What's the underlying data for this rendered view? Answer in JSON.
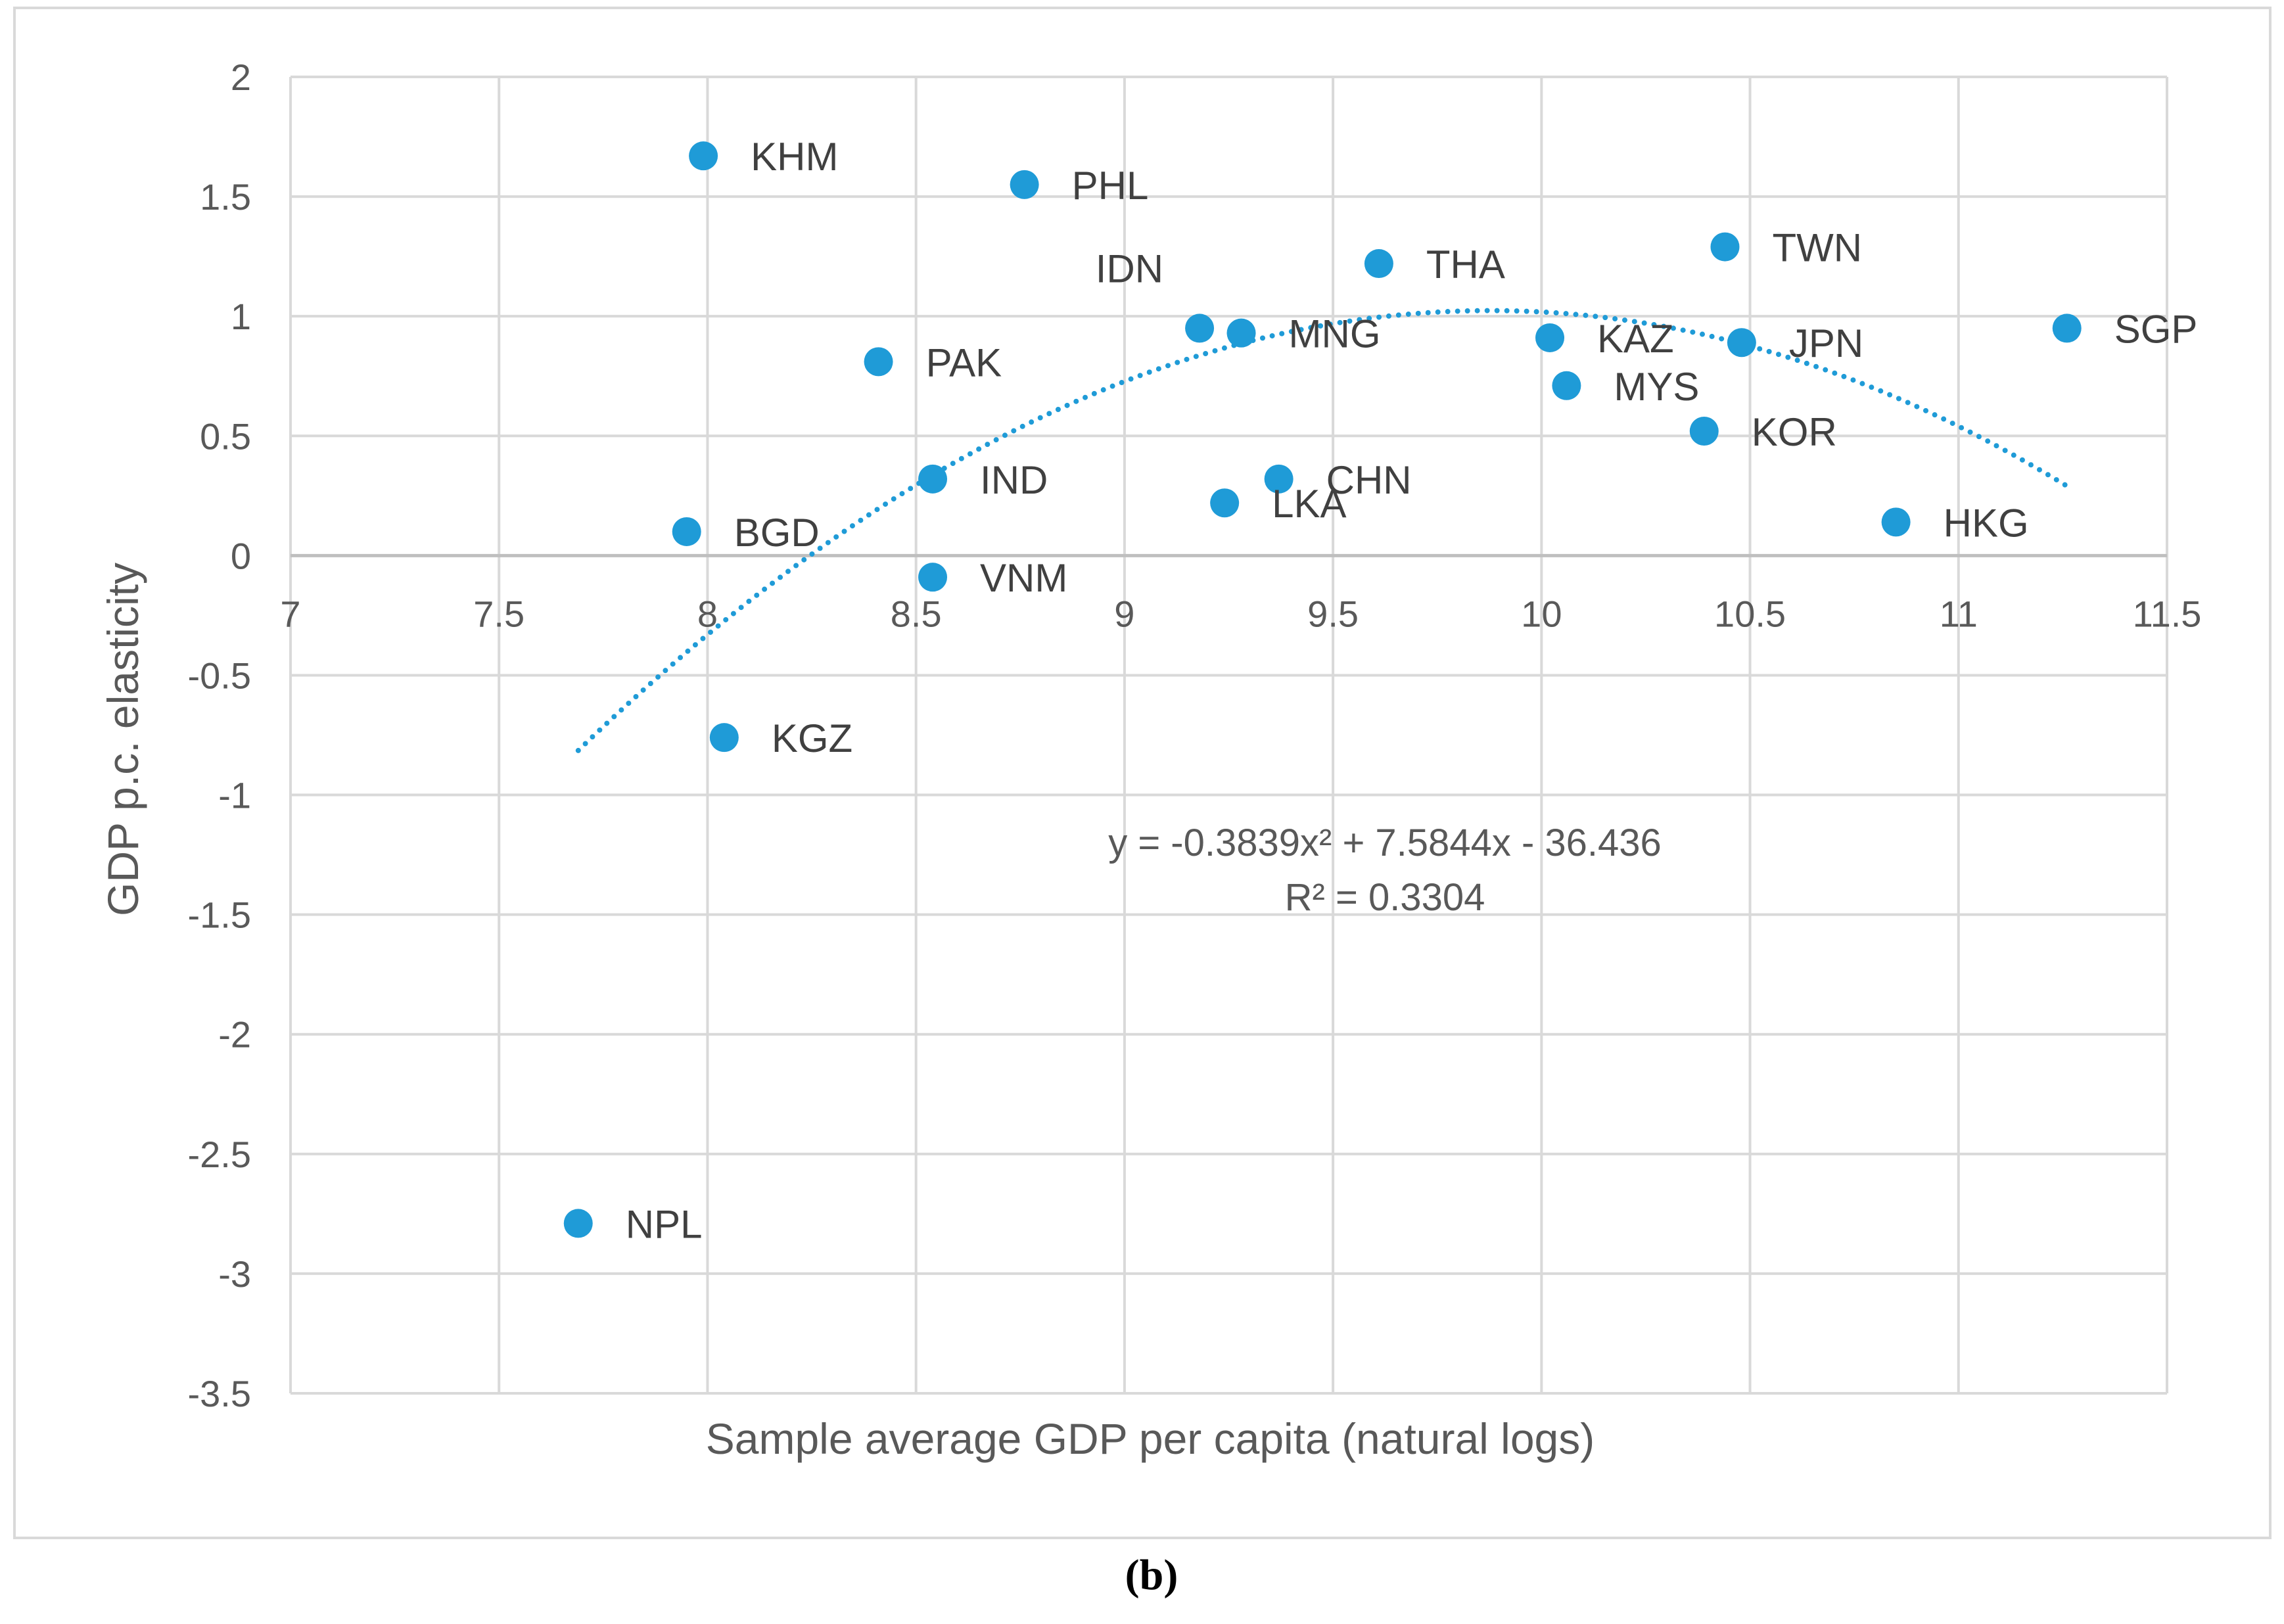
{
  "chart_data": {
    "type": "scatter",
    "title": "",
    "xlabel": "Sample average GDP per capita (natural logs)",
    "ylabel": "GDP p.c. elasticity",
    "xlim": [
      7,
      11.5
    ],
    "ylim": [
      -3.5,
      2
    ],
    "x_ticks": [
      "7",
      "7.5",
      "8",
      "8.5",
      "9",
      "9.5",
      "10",
      "10.5",
      "11",
      "11.5"
    ],
    "y_ticks": [
      "2",
      "1.5",
      "1",
      "0.5",
      "0",
      "-0.5",
      "-1",
      "-1.5",
      "-2",
      "-2.5",
      "-3",
      "-3.5"
    ],
    "grid": true,
    "point_color": "#1f9bd7",
    "series": [
      {
        "name": "Countries",
        "points": [
          {
            "label": "KHM",
            "x": 7.99,
            "y": 1.67
          },
          {
            "label": "PHL",
            "x": 8.76,
            "y": 1.55
          },
          {
            "label": "IDN",
            "x": 9.18,
            "y": 0.95
          },
          {
            "label": "THA",
            "x": 9.61,
            "y": 1.22
          },
          {
            "label": "TWN",
            "x": 10.44,
            "y": 1.29
          },
          {
            "label": "MNG",
            "x": 9.28,
            "y": 0.93
          },
          {
            "label": "KAZ",
            "x": 10.02,
            "y": 0.91
          },
          {
            "label": "JPN",
            "x": 10.48,
            "y": 0.89
          },
          {
            "label": "SGP",
            "x": 11.26,
            "y": 0.95
          },
          {
            "label": "PAK",
            "x": 8.41,
            "y": 0.81
          },
          {
            "label": "MYS",
            "x": 10.06,
            "y": 0.71
          },
          {
            "label": "KOR",
            "x": 10.39,
            "y": 0.52
          },
          {
            "label": "IND",
            "x": 8.54,
            "y": 0.32
          },
          {
            "label": "CHN",
            "x": 9.37,
            "y": 0.32
          },
          {
            "label": "LKA",
            "x": 9.24,
            "y": 0.22
          },
          {
            "label": "HKG",
            "x": 10.85,
            "y": 0.14
          },
          {
            "label": "BGD",
            "x": 7.95,
            "y": 0.1
          },
          {
            "label": "VNM",
            "x": 8.54,
            "y": -0.09
          },
          {
            "label": "KGZ",
            "x": 8.04,
            "y": -0.76
          },
          {
            "label": "NPL",
            "x": 7.69,
            "y": -2.79
          }
        ]
      }
    ],
    "trendline": {
      "type": "polynomial",
      "order": 2,
      "coefficients": [
        -0.3839,
        7.5844,
        -36.436
      ],
      "x_range": [
        7.69,
        11.26
      ],
      "color": "#1f9bd7",
      "equation_label": "y = -0.3839x² + 7.5844x - 36.436",
      "r2_label": "R² = 0.3304"
    }
  },
  "figure": {
    "caption_open": "(",
    "caption_letter": "b",
    "caption_close": ")"
  }
}
